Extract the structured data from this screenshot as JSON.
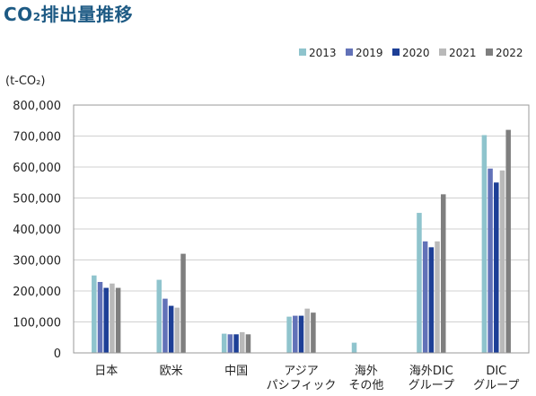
{
  "title": {
    "pre": "CO",
    "sub": "2",
    "post": "排出量推移"
  },
  "chart_data": {
    "type": "bar",
    "unit_label": "(t-CO₂)",
    "categories": [
      [
        "日本"
      ],
      [
        "欧米"
      ],
      [
        "中国"
      ],
      [
        "アジア",
        "パシフィック"
      ],
      [
        "海外",
        "その他"
      ],
      [
        "海外DIC",
        "グループ"
      ],
      [
        "DIC",
        "グループ"
      ]
    ],
    "series": [
      {
        "name": "2013",
        "color": "#8fc4cd",
        "values": [
          250000,
          236000,
          62000,
          117000,
          33000,
          452000,
          703000
        ]
      },
      {
        "name": "2019",
        "color": "#6272b8",
        "values": [
          229000,
          175000,
          60000,
          120000,
          0,
          360000,
          595000
        ]
      },
      {
        "name": "2020",
        "color": "#1d3f96",
        "values": [
          210000,
          152000,
          60000,
          120000,
          0,
          341000,
          550000
        ]
      },
      {
        "name": "2021",
        "color": "#b9b9b9",
        "values": [
          224000,
          146000,
          67000,
          143000,
          0,
          360000,
          589000
        ]
      },
      {
        "name": "2022",
        "color": "#7f7f7f",
        "values": [
          210000,
          320000,
          60000,
          130000,
          0,
          512000,
          720000
        ]
      }
    ],
    "y_ticks": [
      "0",
      "100,000",
      "200,000",
      "300,000",
      "400,000",
      "500,000",
      "600,000",
      "700,000",
      "800,000"
    ],
    "ylim": [
      0,
      800000
    ],
    "grid": true,
    "legend_position": "top-right"
  }
}
